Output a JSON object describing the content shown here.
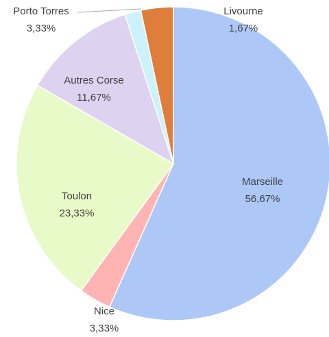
{
  "chart_data": {
    "type": "pie",
    "categories": [
      "Marseille",
      "Nice",
      "Toulon",
      "Autres Corse",
      "Livourne",
      "Porto Torres"
    ],
    "values": [
      56.67,
      3.33,
      23.33,
      11.67,
      1.67,
      3.33
    ],
    "value_labels": [
      "56,67%",
      "3,33%",
      "23,33%",
      "11,67%",
      "1,67%",
      "3,33%"
    ],
    "colors": [
      "#adc8f6",
      "#ffb4b4",
      "#e8fac8",
      "#ddd2f0",
      "#cdf2fb",
      "#df7d3b"
    ]
  }
}
